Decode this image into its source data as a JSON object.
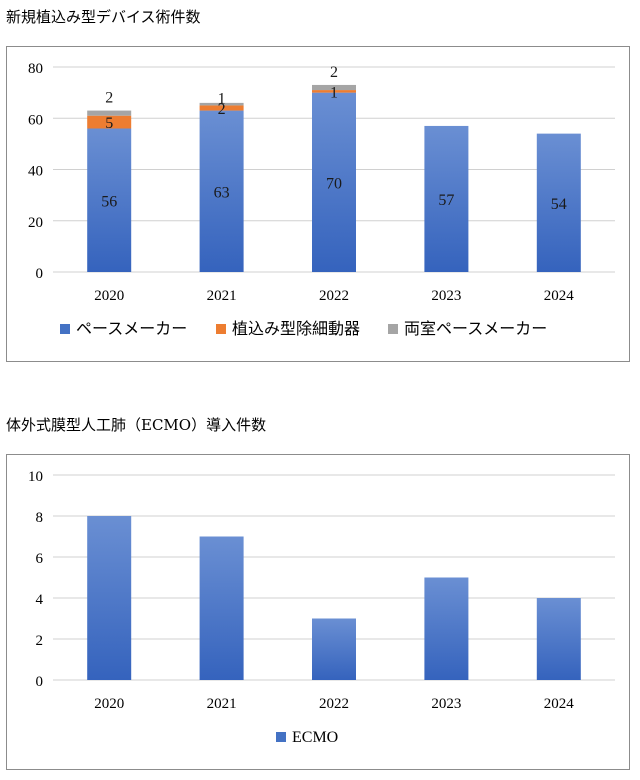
{
  "colors": {
    "pacemaker": "#4472c4",
    "implantable": "#ed7d31",
    "biventricular": "#a5a5a5",
    "ecmo": "#4472c4",
    "grid": "#d0d0d0",
    "frame": "#8c8c8c"
  },
  "chart_data": [
    {
      "type": "bar",
      "stacked": true,
      "title": "新規植込み型デバイス術件数",
      "categories": [
        "2020",
        "2021",
        "2022",
        "2023",
        "2024"
      ],
      "series": [
        {
          "name": "ペースメーカー",
          "values": [
            56,
            63,
            70,
            57,
            54
          ]
        },
        {
          "name": "植込み型除細動器",
          "values": [
            5,
            2,
            1,
            0,
            0
          ]
        },
        {
          "name": "両室ペースメーカー",
          "values": [
            2,
            1,
            2,
            0,
            0
          ]
        }
      ],
      "data_labels": [
        [
          "56",
          "63",
          "70",
          "57",
          "54"
        ],
        [
          "5",
          "2",
          "1",
          "",
          ""
        ],
        [
          "2",
          "1",
          "2",
          "",
          ""
        ]
      ],
      "ylim": [
        0,
        80
      ],
      "yticks": [
        "0",
        "20",
        "40",
        "60",
        "80"
      ],
      "grid": true,
      "legend": "bottom"
    },
    {
      "type": "bar",
      "title": "体外式膜型人工肺（ECMO）導入件数",
      "categories": [
        "2020",
        "2021",
        "2022",
        "2023",
        "2024"
      ],
      "series": [
        {
          "name": "ECMO",
          "values": [
            8,
            7,
            3,
            5,
            4
          ]
        }
      ],
      "ylim": [
        0,
        10
      ],
      "yticks": [
        "0",
        "2",
        "4",
        "6",
        "8",
        "10"
      ],
      "grid": true,
      "legend": "bottom"
    }
  ]
}
